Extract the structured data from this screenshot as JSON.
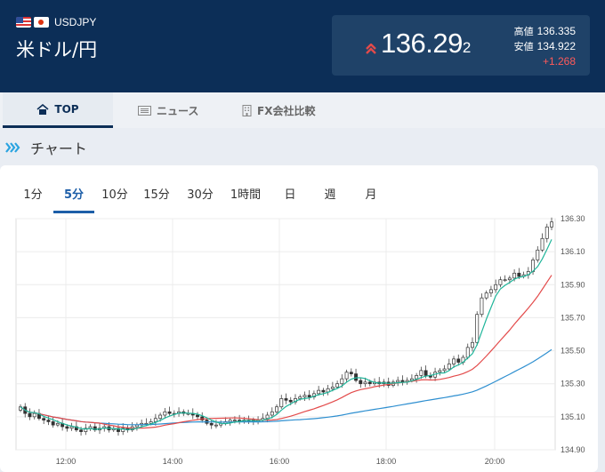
{
  "header": {
    "pair_code": "USDJPY",
    "pair_name": "米ドル/円",
    "price_main": "136.29",
    "price_small": "2",
    "high_label": "高値",
    "high_value": "136.335",
    "low_label": "安値",
    "low_value": "134.922",
    "change": "+1.268"
  },
  "tabs": [
    {
      "label": "TOP",
      "icon": "home-icon"
    },
    {
      "label": "ニュース",
      "icon": "newspaper-icon"
    },
    {
      "label": "FX会社比較",
      "icon": "building-icon"
    }
  ],
  "section_title": "チャート",
  "intervals": [
    "1分",
    "5分",
    "10分",
    "15分",
    "30分",
    "1時間",
    "日",
    "週",
    "月"
  ],
  "active_interval": "5分",
  "colors": {
    "up": "#e24a4a",
    "header": "#0c2e57",
    "ma_short": "#1fb59a",
    "ma_mid": "#e34b4b",
    "ma_long": "#2e8fd0"
  },
  "chart_data": {
    "type": "candlestick",
    "y_ticks": [
      "136.30",
      "136.10",
      "135.90",
      "135.70",
      "135.50",
      "135.30",
      "135.10",
      "134.90"
    ],
    "x_ticks": [
      "12:00",
      "14:00",
      "16:00",
      "18:00",
      "20:00"
    ],
    "ylim": [
      134.9,
      136.3
    ],
    "close": [
      135.16,
      135.12,
      135.1,
      135.12,
      135.09,
      135.08,
      135.07,
      135.05,
      135.06,
      135.04,
      135.03,
      135.04,
      135.02,
      135.01,
      135.03,
      135.04,
      135.02,
      135.03,
      135.04,
      135.02,
      135.03,
      135.01,
      135.03,
      135.02,
      135.04,
      135.05,
      135.06,
      135.06,
      135.07,
      135.09,
      135.11,
      135.13,
      135.12,
      135.12,
      135.13,
      135.12,
      135.12,
      135.11,
      135.1,
      135.08,
      135.06,
      135.05,
      135.05,
      135.06,
      135.07,
      135.08,
      135.08,
      135.07,
      135.08,
      135.08,
      135.07,
      135.08,
      135.09,
      135.11,
      135.13,
      135.16,
      135.21,
      135.2,
      135.19,
      135.21,
      135.22,
      135.23,
      135.22,
      135.24,
      135.26,
      135.25,
      135.27,
      135.28,
      135.3,
      135.33,
      135.37,
      135.36,
      135.32,
      135.3,
      135.31,
      135.3,
      135.31,
      135.3,
      135.31,
      135.29,
      135.31,
      135.32,
      135.31,
      135.32,
      135.33,
      135.35,
      135.38,
      135.35,
      135.34,
      135.37,
      135.38,
      135.39,
      135.42,
      135.45,
      135.43,
      135.46,
      135.52,
      135.55,
      135.72,
      135.82,
      135.85,
      135.87,
      135.9,
      135.93,
      135.93,
      135.94,
      135.97,
      135.95,
      135.96,
      135.98,
      136.05,
      136.11,
      136.18,
      136.25,
      136.28
    ]
  }
}
